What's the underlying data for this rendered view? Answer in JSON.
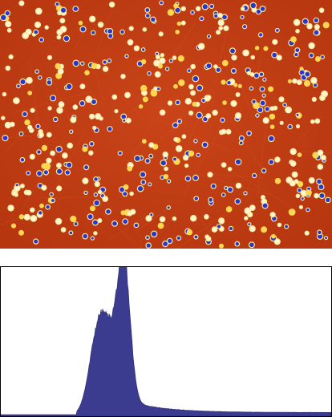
{
  "image": {
    "description_colors": {
      "background": "#c8401a",
      "background_dark": "#b83a14",
      "ring_outer": "#f7e9a0",
      "ring_inner": "#fff6d0",
      "particle": "#2a36c8",
      "bright_spot": "#ffd650"
    }
  },
  "histogram": {
    "colors": {
      "fill": "#3b3b8f",
      "stroke": "#2a2a6e",
      "frame": "#000000"
    }
  }
}
